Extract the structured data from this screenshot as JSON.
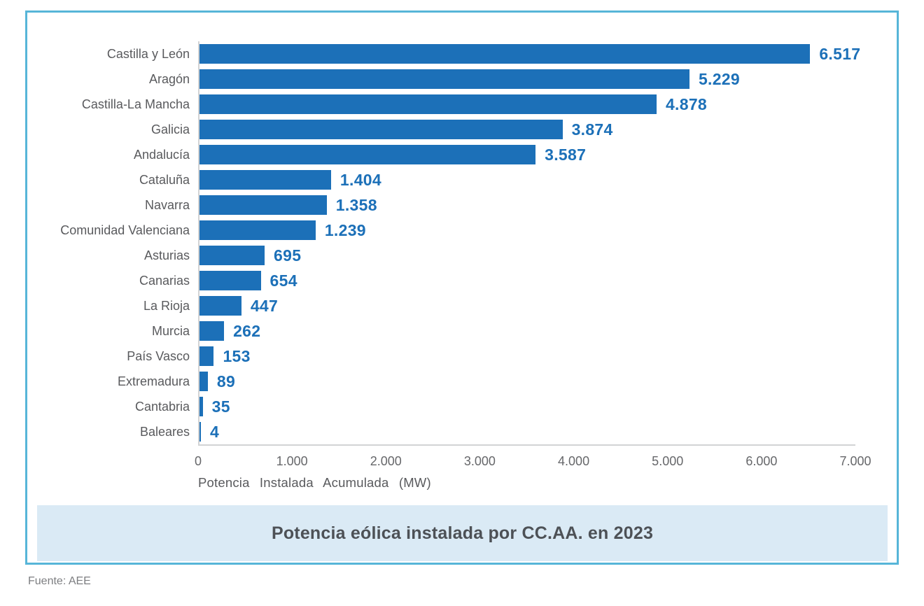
{
  "chart_data": {
    "type": "bar",
    "orientation": "horizontal",
    "title": "Potencia eólica instalada por CC.AA. en 2023",
    "xlabel": "Potencia Instalada Acumulada (MW)",
    "source": "Fuente: AEE",
    "xlim": [
      0,
      7000
    ],
    "x_ticks": [
      "0",
      "1.000",
      "2.000",
      "3.000",
      "4.000",
      "5.000",
      "6.000",
      "7.000"
    ],
    "grid": "off",
    "legend": "none",
    "categories": [
      "Castilla y León",
      "Aragón",
      "Castilla-La Mancha",
      "Galicia",
      "Andalucía",
      "Cataluña",
      "Navarra",
      "Comunidad Valenciana",
      "Asturias",
      "Canarias",
      "La Rioja",
      "Murcia",
      "País Vasco",
      "Extremadura",
      "Cantabria",
      "Baleares"
    ],
    "values": [
      6517,
      5229,
      4878,
      3874,
      3587,
      1404,
      1358,
      1239,
      695,
      654,
      447,
      262,
      153,
      89,
      35,
      4
    ],
    "value_labels": [
      "6.517",
      "5.229",
      "4.878",
      "3.874",
      "3.587",
      "1.404",
      "1.358",
      "1.239",
      "695",
      "654",
      "447",
      "262",
      "153",
      "89",
      "35",
      "4"
    ],
    "colors": {
      "bar": "#1c70b8",
      "value_label": "#1c70b8",
      "border": "#57b5d8",
      "band_bg": "#daeaf5",
      "title_text": "#4d5156",
      "category_label": "#595a5d",
      "tick_label": "#66676a",
      "axis_line": "#d2d3d4",
      "source_text": "#7d7e81"
    }
  }
}
